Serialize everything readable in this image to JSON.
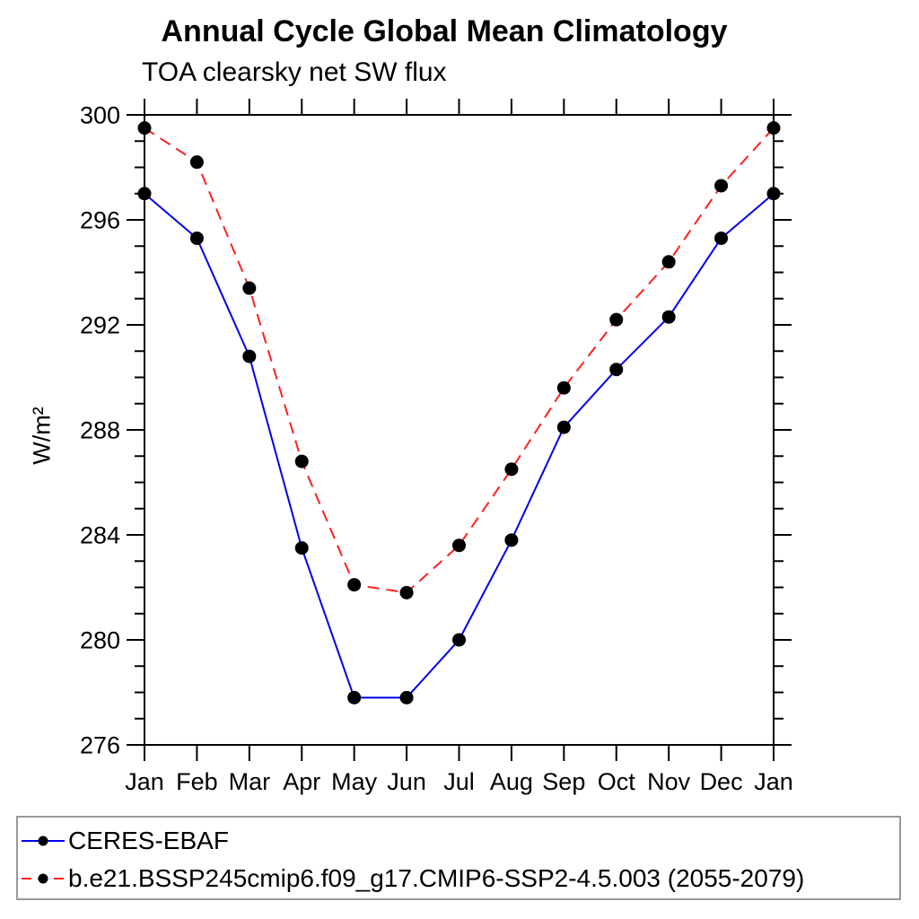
{
  "page": {
    "background": "#ffffff",
    "axis_color": "#000000",
    "legend_border_color": "#999999"
  },
  "chart_data": {
    "type": "line",
    "title": "Annual Cycle Global Mean Climatology",
    "subtitle": "TOA clearsky net SW flux",
    "ylabel": "W/m²",
    "xlabel": "",
    "categories": [
      "Jan",
      "Feb",
      "Mar",
      "Apr",
      "May",
      "Jun",
      "Jul",
      "Aug",
      "Sep",
      "Oct",
      "Nov",
      "Dec",
      "Jan"
    ],
    "ylim": [
      276,
      300
    ],
    "y_major_step": 4,
    "y_minor_step": 1,
    "y_major_tick_labels": [
      "276",
      "280",
      "284",
      "288",
      "292",
      "296",
      "300"
    ],
    "grid": false,
    "legend_position": "bottom-left-box",
    "marker_color": "#000000",
    "series": [
      {
        "name": "CERES-EBAF",
        "color": "#0000ee",
        "style": "solid",
        "marker": "filled-circle",
        "values": [
          297.0,
          295.3,
          290.8,
          283.5,
          277.8,
          277.8,
          280.0,
          283.8,
          288.1,
          290.3,
          292.3,
          295.3,
          297.0
        ]
      },
      {
        "name": "b.e21.BSSP245cmip6.f09_g17.CMIP6-SSP2-4.5.003 (2055-2079)",
        "color": "#ff1e1e",
        "style": "dashed",
        "marker": "filled-circle",
        "values": [
          299.5,
          298.2,
          293.4,
          286.8,
          282.1,
          281.8,
          283.6,
          286.5,
          289.6,
          292.2,
          294.4,
          297.3,
          299.5
        ]
      }
    ]
  }
}
